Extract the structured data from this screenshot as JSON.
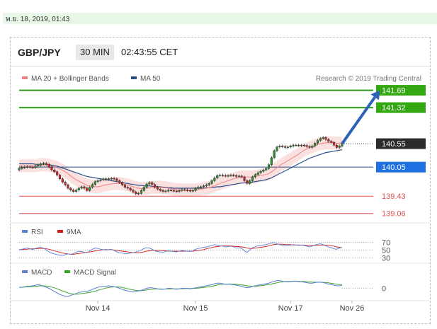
{
  "date_text": "พ.ย. 18, 2019, 01:43",
  "header": {
    "symbol": "GBP/JPY",
    "timeframe": "30 MIN",
    "time": "02:43:55 CET"
  },
  "legend": {
    "main": [
      {
        "label": "MA 20 + Bollinger Bands",
        "color": "#f08080"
      },
      {
        "label": "MA 50",
        "color": "#2b4f8a"
      }
    ],
    "copyright": "Research © 2019 Trading Central",
    "rsi": [
      {
        "label": "RSI",
        "color": "#5b7fd6"
      },
      {
        "label": "9MA",
        "color": "#d11b1b"
      }
    ],
    "macd": [
      {
        "label": "MACD",
        "color": "#5b7fd6"
      },
      {
        "label": "MACD Signal",
        "color": "#3da32c"
      }
    ]
  },
  "colors": {
    "green_level": "#2e9c1a",
    "label_green": "#33a812",
    "label_dark": "#2b2b2b",
    "label_blue": "#1e6fe0",
    "red_level": "#e05050",
    "blue_line": "#2b4f8a",
    "arrow": "#2e62b8"
  },
  "chart_data": {
    "type": "candlestick",
    "ylim": [
      138.95,
      141.85
    ],
    "levels": [
      {
        "value": 141.69,
        "label": "141.69",
        "style": "resistance"
      },
      {
        "value": 141.32,
        "label": "141.32",
        "style": "resistance"
      },
      {
        "value": 140.55,
        "label": "140.55",
        "style": "last"
      },
      {
        "value": 140.05,
        "label": "140.05",
        "style": "pivot"
      },
      {
        "value": 139.43,
        "label": "139.43",
        "style": "support"
      },
      {
        "value": 139.06,
        "label": "139.06",
        "style": "support"
      }
    ],
    "close": [
      140.02,
      140.04,
      140.05,
      140.06,
      140.05,
      140.04,
      140.07,
      140.09,
      140.12,
      140.13,
      140.11,
      140.05,
      139.99,
      139.95,
      139.88,
      139.8,
      139.73,
      139.67,
      139.6,
      139.56,
      139.53,
      139.56,
      139.6,
      139.63,
      139.6,
      139.55,
      139.62,
      139.68,
      139.74,
      139.76,
      139.78,
      139.8,
      139.79,
      139.8,
      139.81,
      139.8,
      139.76,
      139.72,
      139.67,
      139.62,
      139.6,
      139.56,
      139.52,
      139.48,
      139.49,
      139.55,
      139.62,
      139.69,
      139.72,
      139.68,
      139.62,
      139.58,
      139.55,
      139.53,
      139.54,
      139.56,
      139.55,
      139.54,
      139.53,
      139.55,
      139.57,
      139.56,
      139.55,
      139.54,
      139.55,
      139.6,
      139.62,
      139.63,
      139.65,
      139.67,
      139.7,
      139.76,
      139.82,
      139.87,
      139.88,
      139.87,
      139.86,
      139.87,
      139.88,
      139.87,
      139.85,
      139.86,
      139.84,
      139.76,
      139.7,
      139.76,
      139.84,
      139.89,
      139.93,
      139.96,
      139.99,
      140.02,
      140.1,
      140.25,
      140.4,
      140.48,
      140.5,
      140.49,
      140.47,
      140.48,
      140.5,
      140.52,
      140.52,
      140.51,
      140.52,
      140.51,
      140.49,
      140.47,
      140.5,
      140.56,
      140.62,
      140.66,
      140.68,
      140.64,
      140.6,
      140.58,
      140.52,
      140.47,
      140.5,
      140.55
    ],
    "ma20": [
      140.07,
      140.08,
      140.08,
      140.08,
      140.08,
      140.08,
      140.08,
      140.09,
      140.1,
      140.1,
      140.1,
      140.09,
      140.07,
      140.06,
      140.04,
      140.01,
      139.98,
      139.95,
      139.91,
      139.86,
      139.82,
      139.78,
      139.75,
      139.72,
      139.69,
      139.66,
      139.65,
      139.64,
      139.63,
      139.63,
      139.64,
      139.66,
      139.67,
      139.68,
      139.69,
      139.7,
      139.7,
      139.7,
      139.69,
      139.68,
      139.67,
      139.65,
      139.63,
      139.61,
      139.6,
      139.59,
      139.59,
      139.6,
      139.61,
      139.62,
      139.62,
      139.62,
      139.62,
      139.61,
      139.61,
      139.6,
      139.59,
      139.58,
      139.57,
      139.56,
      139.56,
      139.56,
      139.56,
      139.56,
      139.56,
      139.56,
      139.57,
      139.58,
      139.59,
      139.6,
      139.61,
      139.63,
      139.65,
      139.68,
      139.7,
      139.72,
      139.74,
      139.76,
      139.78,
      139.8,
      139.82,
      139.83,
      139.84,
      139.84,
      139.84,
      139.84,
      139.84,
      139.85,
      139.86,
      139.87,
      139.88,
      139.89,
      139.91,
      139.95,
      139.99,
      140.04,
      140.08,
      140.12,
      140.15,
      140.19,
      140.22,
      140.26,
      140.29,
      140.33,
      140.37,
      140.41,
      140.44,
      140.47,
      140.49,
      140.51,
      140.53,
      140.55,
      140.56,
      140.57,
      140.57,
      140.57,
      140.57,
      140.56,
      140.56,
      140.56
    ],
    "ma50": [
      140.12,
      140.12,
      140.12,
      140.12,
      140.12,
      140.12,
      140.11,
      140.11,
      140.11,
      140.11,
      140.1,
      140.1,
      140.09,
      140.08,
      140.07,
      140.05,
      140.03,
      140.01,
      139.99,
      139.97,
      139.95,
      139.93,
      139.91,
      139.89,
      139.87,
      139.85,
      139.84,
      139.83,
      139.82,
      139.81,
      139.8,
      139.79,
      139.78,
      139.77,
      139.76,
      139.75,
      139.74,
      139.73,
      139.72,
      139.71,
      139.7,
      139.69,
      139.68,
      139.67,
      139.66,
      139.66,
      139.65,
      139.65,
      139.65,
      139.64,
      139.64,
      139.63,
      139.63,
      139.62,
      139.62,
      139.61,
      139.61,
      139.6,
      139.6,
      139.6,
      139.6,
      139.6,
      139.6,
      139.6,
      139.6,
      139.6,
      139.6,
      139.6,
      139.6,
      139.61,
      139.61,
      139.62,
      139.62,
      139.63,
      139.63,
      139.64,
      139.65,
      139.66,
      139.67,
      139.68,
      139.69,
      139.7,
      139.71,
      139.71,
      139.72,
      139.72,
      139.73,
      139.74,
      139.75,
      139.76,
      139.77,
      139.78,
      139.8,
      139.82,
      139.85,
      139.88,
      139.91,
      139.94,
      139.97,
      140.0,
      140.03,
      140.06,
      140.09,
      140.12,
      140.15,
      140.18,
      140.21,
      140.24,
      140.26,
      140.28,
      140.3,
      140.32,
      140.34,
      140.36,
      140.37,
      140.38,
      140.39,
      140.4,
      140.41,
      140.42
    ],
    "rsi_ylim": [
      25,
      80
    ],
    "rsi_ticks": [
      70,
      50,
      30
    ],
    "rsi": [
      50,
      52,
      54,
      55,
      53,
      51,
      54,
      56,
      57,
      55,
      50,
      45,
      42,
      40,
      38,
      37,
      36,
      38,
      40,
      39,
      41,
      44,
      47,
      46,
      44,
      43,
      48,
      52,
      55,
      54,
      52,
      51,
      50,
      51,
      52,
      49,
      45,
      43,
      42,
      40,
      41,
      42,
      43,
      45,
      47,
      50,
      54,
      56,
      55,
      52,
      48,
      46,
      45,
      44,
      46,
      48,
      47,
      46,
      45,
      47,
      49,
      48,
      47,
      46,
      48,
      52,
      54,
      55,
      57,
      58,
      60,
      62,
      64,
      63,
      61,
      60,
      58,
      59,
      60,
      58,
      55,
      56,
      54,
      48,
      44,
      50,
      56,
      59,
      61,
      62,
      63,
      64,
      66,
      68,
      69,
      66,
      64,
      62,
      61,
      62,
      63,
      64,
      63,
      62,
      63,
      62,
      60,
      58,
      60,
      63,
      65,
      66,
      64,
      61,
      58,
      56,
      53,
      52,
      55,
      57
    ],
    "rsi_ma": [
      51,
      51,
      52,
      52,
      53,
      53,
      53,
      54,
      54,
      54,
      53,
      52,
      50,
      48,
      46,
      44,
      42,
      41,
      40,
      39,
      39,
      40,
      41,
      42,
      43,
      44,
      45,
      46,
      48,
      49,
      50,
      51,
      51,
      51,
      51,
      50,
      49,
      48,
      47,
      46,
      45,
      44,
      43,
      43,
      43,
      44,
      45,
      47,
      48,
      49,
      49,
      49,
      49,
      48,
      48,
      47,
      47,
      47,
      47,
      47,
      47,
      47,
      47,
      47,
      47,
      48,
      49,
      50,
      51,
      53,
      55,
      56,
      58,
      59,
      60,
      61,
      61,
      61,
      61,
      60,
      59,
      59,
      58,
      57,
      55,
      54,
      54,
      55,
      56,
      57,
      58,
      59,
      61,
      63,
      64,
      65,
      65,
      65,
      64,
      64,
      64,
      63,
      63,
      63,
      63,
      63,
      62,
      62,
      62,
      62,
      62,
      63,
      63,
      63,
      62,
      61,
      60,
      58,
      57,
      56
    ],
    "macd_ylim": [
      -0.1,
      0.1
    ],
    "macd_ticks": [
      0
    ],
    "macd": [
      0.01,
      0.01,
      0.015,
      0.02,
      0.02,
      0.025,
      0.03,
      0.035,
      0.03,
      0.02,
      0.01,
      0.0,
      -0.015,
      -0.03,
      -0.045,
      -0.06,
      -0.07,
      -0.075,
      -0.08,
      -0.07,
      -0.06,
      -0.05,
      -0.04,
      -0.035,
      -0.03,
      -0.03,
      -0.02,
      -0.01,
      0.0,
      0.01,
      0.015,
      0.02,
      0.02,
      0.025,
      0.02,
      0.015,
      0.01,
      0.0,
      -0.01,
      -0.02,
      -0.025,
      -0.03,
      -0.035,
      -0.03,
      -0.025,
      -0.02,
      -0.01,
      0.0,
      0.005,
      0.005,
      0.0,
      -0.005,
      -0.01,
      -0.01,
      -0.005,
      0.0,
      0.0,
      -0.005,
      -0.01,
      -0.005,
      0.0,
      0.0,
      0.0,
      -0.005,
      0.0,
      0.005,
      0.01,
      0.015,
      0.02,
      0.025,
      0.03,
      0.035,
      0.045,
      0.05,
      0.05,
      0.045,
      0.04,
      0.04,
      0.04,
      0.035,
      0.03,
      0.025,
      0.02,
      0.01,
      0.005,
      0.01,
      0.02,
      0.025,
      0.03,
      0.035,
      0.04,
      0.045,
      0.05,
      0.06,
      0.07,
      0.075,
      0.075,
      0.07,
      0.065,
      0.065,
      0.065,
      0.07,
      0.07,
      0.065,
      0.065,
      0.06,
      0.055,
      0.05,
      0.05,
      0.055,
      0.06,
      0.06,
      0.055,
      0.05,
      0.04,
      0.035,
      0.03,
      0.025,
      0.025,
      0.03
    ],
    "macd_signal": [
      0.01,
      0.01,
      0.012,
      0.014,
      0.016,
      0.018,
      0.02,
      0.022,
      0.024,
      0.024,
      0.022,
      0.018,
      0.012,
      0.005,
      -0.005,
      -0.015,
      -0.025,
      -0.035,
      -0.045,
      -0.052,
      -0.056,
      -0.058,
      -0.056,
      -0.052,
      -0.048,
      -0.044,
      -0.04,
      -0.034,
      -0.028,
      -0.02,
      -0.012,
      -0.005,
      0.002,
      0.008,
      0.012,
      0.014,
      0.014,
      0.012,
      0.008,
      0.002,
      -0.004,
      -0.01,
      -0.016,
      -0.02,
      -0.022,
      -0.022,
      -0.02,
      -0.016,
      -0.012,
      -0.008,
      -0.006,
      -0.006,
      -0.006,
      -0.007,
      -0.007,
      -0.006,
      -0.005,
      -0.005,
      -0.005,
      -0.005,
      -0.004,
      -0.003,
      -0.002,
      -0.002,
      -0.001,
      0.0,
      0.002,
      0.005,
      0.008,
      0.012,
      0.016,
      0.02,
      0.026,
      0.032,
      0.037,
      0.04,
      0.041,
      0.042,
      0.042,
      0.041,
      0.039,
      0.036,
      0.033,
      0.029,
      0.024,
      0.021,
      0.02,
      0.021,
      0.023,
      0.026,
      0.029,
      0.033,
      0.037,
      0.042,
      0.048,
      0.054,
      0.06,
      0.064,
      0.066,
      0.067,
      0.067,
      0.068,
      0.068,
      0.068,
      0.067,
      0.066,
      0.064,
      0.062,
      0.06,
      0.059,
      0.059,
      0.059,
      0.058,
      0.056,
      0.053,
      0.049,
      0.045,
      0.041,
      0.037,
      0.035
    ],
    "x_ticks": [
      {
        "index": 29,
        "label": "Nov 14"
      },
      {
        "index": 65,
        "label": "Nov 15"
      },
      {
        "index": 100,
        "label": "Nov 17"
      },
      {
        "index": 119,
        "label": "Nov 26"
      }
    ],
    "forecast": {
      "from_index": 119,
      "from_value": 140.55,
      "to_index": 124,
      "to_value": 141.69
    }
  }
}
